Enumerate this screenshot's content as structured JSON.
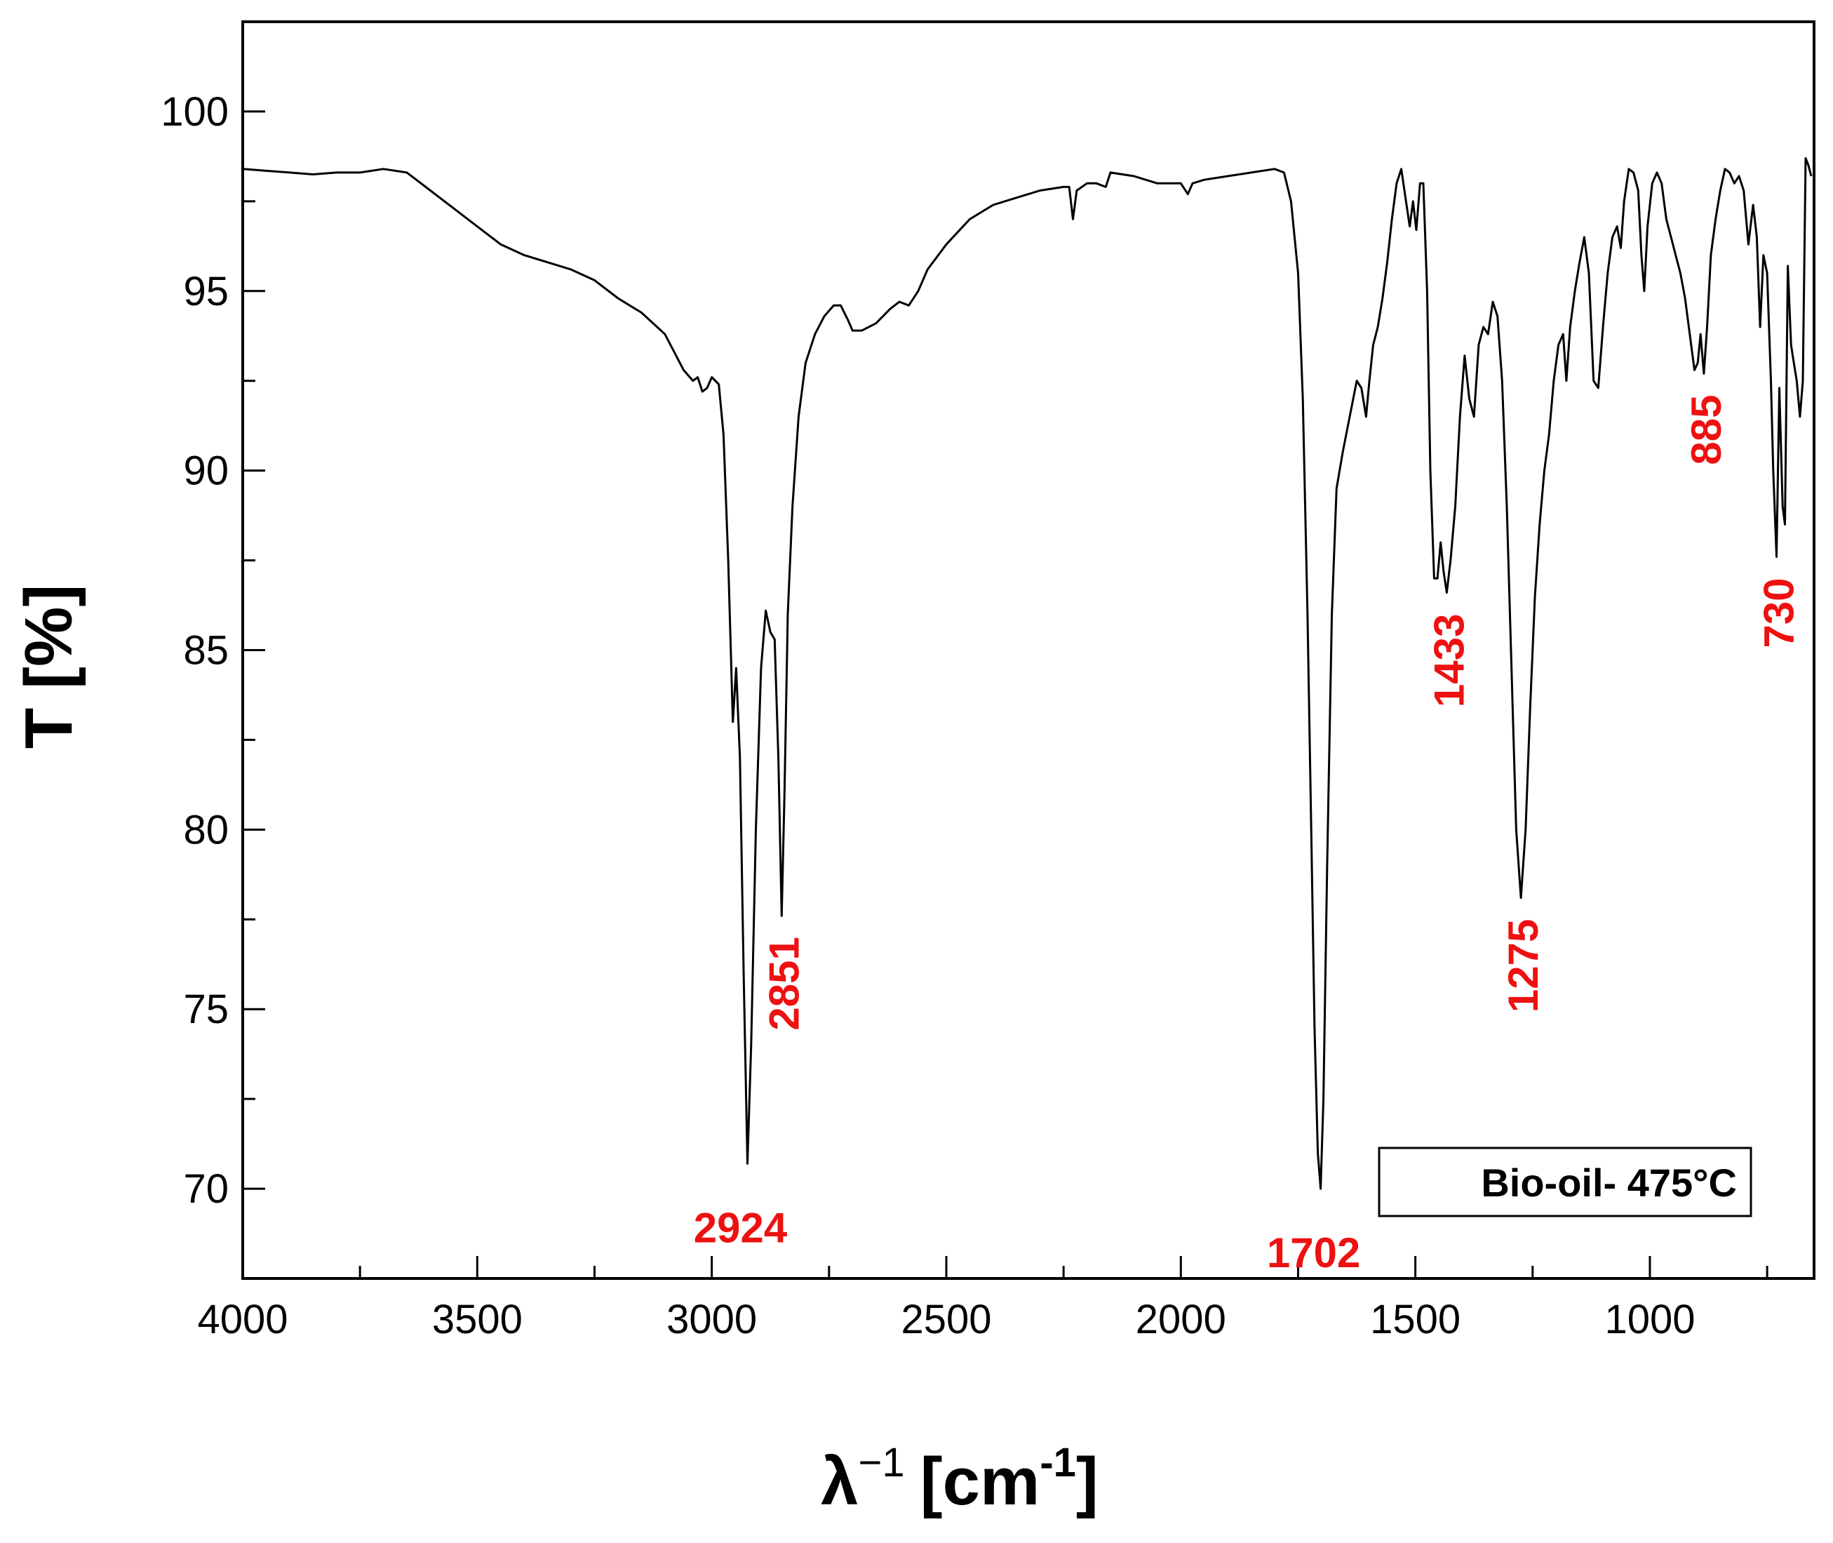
{
  "chart_data": {
    "type": "line",
    "title": "",
    "xlabel": "λ⁻¹ [cm⁻¹]",
    "xlabel_parts": {
      "base": "λ",
      "base_sup": "−1",
      "unit_open": "[cm",
      "unit_sup": "-1",
      "unit_close": "]"
    },
    "ylabel": "T [%]",
    "xlim": [
      4000,
      650
    ],
    "ylim": [
      67.5,
      102.5
    ],
    "x_reversed": true,
    "grid": false,
    "x_ticks": [
      4000,
      3500,
      3000,
      2500,
      2000,
      1500,
      1000
    ],
    "x_tick_labels": [
      "4000",
      "3500",
      "3000",
      "2500",
      "2000",
      "1500",
      "1000"
    ],
    "y_ticks": [
      70,
      75,
      80,
      85,
      90,
      95,
      100
    ],
    "y_tick_labels": [
      "70",
      "75",
      "80",
      "85",
      "90",
      "95",
      "100"
    ],
    "legend": {
      "text": "Bio-oil- 475°C",
      "position": "bottom-right"
    },
    "line_color": "#000000",
    "annotation_color": "#ee1111",
    "annotations": [
      {
        "text": "2924",
        "x": 2924,
        "y": 70.7,
        "orientation": "horizontal"
      },
      {
        "text": "2851",
        "x": 2851,
        "y": 77.6,
        "orientation": "vertical"
      },
      {
        "text": "1702",
        "x": 1702,
        "y": 70.0,
        "orientation": "horizontal"
      },
      {
        "text": "1433",
        "x": 1433,
        "y": 86.6,
        "orientation": "vertical"
      },
      {
        "text": "1275",
        "x": 1275,
        "y": 78.1,
        "orientation": "vertical"
      },
      {
        "text": "885",
        "x": 885,
        "y": 92.7,
        "orientation": "vertical"
      },
      {
        "text": "730",
        "x": 730,
        "y": 87.6,
        "orientation": "vertical"
      }
    ],
    "series": [
      {
        "values": [
          [
            4000,
            98.4
          ],
          [
            3950,
            98.35
          ],
          [
            3900,
            98.3
          ],
          [
            3850,
            98.25
          ],
          [
            3800,
            98.3
          ],
          [
            3750,
            98.3
          ],
          [
            3700,
            98.4
          ],
          [
            3650,
            98.3
          ],
          [
            3600,
            97.8
          ],
          [
            3550,
            97.3
          ],
          [
            3500,
            96.8
          ],
          [
            3450,
            96.3
          ],
          [
            3400,
            96.0
          ],
          [
            3350,
            95.8
          ],
          [
            3300,
            95.6
          ],
          [
            3250,
            95.3
          ],
          [
            3200,
            94.8
          ],
          [
            3150,
            94.4
          ],
          [
            3100,
            93.8
          ],
          [
            3080,
            93.3
          ],
          [
            3060,
            92.8
          ],
          [
            3040,
            92.5
          ],
          [
            3030,
            92.6
          ],
          [
            3020,
            92.2
          ],
          [
            3010,
            92.3
          ],
          [
            3000,
            92.6
          ],
          [
            2985,
            92.4
          ],
          [
            2975,
            91.0
          ],
          [
            2965,
            87.5
          ],
          [
            2955,
            83.0
          ],
          [
            2948,
            84.5
          ],
          [
            2940,
            82.0
          ],
          [
            2932,
            76.0
          ],
          [
            2924,
            70.7
          ],
          [
            2916,
            74.0
          ],
          [
            2906,
            80.0
          ],
          [
            2895,
            84.5
          ],
          [
            2885,
            86.1
          ],
          [
            2875,
            85.5
          ],
          [
            2866,
            85.3
          ],
          [
            2858,
            82.0
          ],
          [
            2851,
            77.6
          ],
          [
            2845,
            81.0
          ],
          [
            2838,
            86.0
          ],
          [
            2828,
            89.0
          ],
          [
            2815,
            91.5
          ],
          [
            2800,
            93.0
          ],
          [
            2780,
            93.8
          ],
          [
            2760,
            94.3
          ],
          [
            2740,
            94.6
          ],
          [
            2725,
            94.6
          ],
          [
            2710,
            94.2
          ],
          [
            2700,
            93.9
          ],
          [
            2680,
            93.9
          ],
          [
            2650,
            94.1
          ],
          [
            2620,
            94.5
          ],
          [
            2600,
            94.7
          ],
          [
            2580,
            94.6
          ],
          [
            2560,
            95.0
          ],
          [
            2540,
            95.6
          ],
          [
            2500,
            96.3
          ],
          [
            2450,
            97.0
          ],
          [
            2400,
            97.4
          ],
          [
            2350,
            97.6
          ],
          [
            2300,
            97.8
          ],
          [
            2250,
            97.9
          ],
          [
            2238,
            97.9
          ],
          [
            2230,
            97.0
          ],
          [
            2222,
            97.8
          ],
          [
            2200,
            98.0
          ],
          [
            2180,
            98.0
          ],
          [
            2160,
            97.9
          ],
          [
            2150,
            98.3
          ],
          [
            2100,
            98.2
          ],
          [
            2050,
            98.0
          ],
          [
            2000,
            98.0
          ],
          [
            1985,
            97.7
          ],
          [
            1975,
            98.0
          ],
          [
            1950,
            98.1
          ],
          [
            1900,
            98.2
          ],
          [
            1850,
            98.3
          ],
          [
            1800,
            98.4
          ],
          [
            1780,
            98.3
          ],
          [
            1765,
            97.5
          ],
          [
            1750,
            95.5
          ],
          [
            1740,
            92.0
          ],
          [
            1730,
            86.0
          ],
          [
            1722,
            80.0
          ],
          [
            1715,
            74.5
          ],
          [
            1708,
            71.0
          ],
          [
            1702,
            70.0
          ],
          [
            1696,
            72.5
          ],
          [
            1688,
            79.0
          ],
          [
            1678,
            86.0
          ],
          [
            1668,
            89.5
          ],
          [
            1655,
            90.5
          ],
          [
            1640,
            91.5
          ],
          [
            1625,
            92.5
          ],
          [
            1615,
            92.3
          ],
          [
            1605,
            91.5
          ],
          [
            1598,
            92.5
          ],
          [
            1590,
            93.5
          ],
          [
            1580,
            94.0
          ],
          [
            1570,
            94.8
          ],
          [
            1560,
            95.8
          ],
          [
            1550,
            97.0
          ],
          [
            1540,
            98.0
          ],
          [
            1530,
            98.4
          ],
          [
            1520,
            97.5
          ],
          [
            1512,
            96.8
          ],
          [
            1505,
            97.5
          ],
          [
            1498,
            96.7
          ],
          [
            1490,
            98.0
          ],
          [
            1483,
            98.0
          ],
          [
            1475,
            95.0
          ],
          [
            1468,
            90.0
          ],
          [
            1460,
            87.0
          ],
          [
            1453,
            87.0
          ],
          [
            1446,
            88.0
          ],
          [
            1440,
            87.2
          ],
          [
            1433,
            86.6
          ],
          [
            1425,
            87.5
          ],
          [
            1415,
            89.0
          ],
          [
            1405,
            91.5
          ],
          [
            1395,
            93.2
          ],
          [
            1385,
            92.0
          ],
          [
            1375,
            91.5
          ],
          [
            1365,
            93.5
          ],
          [
            1355,
            94.0
          ],
          [
            1345,
            93.8
          ],
          [
            1335,
            94.7
          ],
          [
            1325,
            94.3
          ],
          [
            1315,
            92.5
          ],
          [
            1305,
            89.0
          ],
          [
            1295,
            84.5
          ],
          [
            1285,
            80.0
          ],
          [
            1275,
            78.1
          ],
          [
            1265,
            80.0
          ],
          [
            1255,
            83.5
          ],
          [
            1245,
            86.5
          ],
          [
            1235,
            88.5
          ],
          [
            1225,
            90.0
          ],
          [
            1215,
            91.0
          ],
          [
            1205,
            92.5
          ],
          [
            1195,
            93.5
          ],
          [
            1185,
            93.8
          ],
          [
            1178,
            92.5
          ],
          [
            1170,
            94.0
          ],
          [
            1160,
            95.0
          ],
          [
            1150,
            95.8
          ],
          [
            1140,
            96.5
          ],
          [
            1130,
            95.5
          ],
          [
            1120,
            92.5
          ],
          [
            1110,
            92.3
          ],
          [
            1100,
            94.0
          ],
          [
            1090,
            95.5
          ],
          [
            1080,
            96.5
          ],
          [
            1070,
            96.8
          ],
          [
            1062,
            96.2
          ],
          [
            1055,
            97.5
          ],
          [
            1045,
            98.4
          ],
          [
            1035,
            98.3
          ],
          [
            1025,
            97.8
          ],
          [
            1018,
            96.0
          ],
          [
            1012,
            95.0
          ],
          [
            1005,
            96.8
          ],
          [
            995,
            98.0
          ],
          [
            985,
            98.3
          ],
          [
            975,
            98.0
          ],
          [
            965,
            97.0
          ],
          [
            955,
            96.5
          ],
          [
            945,
            96.0
          ],
          [
            935,
            95.5
          ],
          [
            925,
            94.8
          ],
          [
            915,
            93.8
          ],
          [
            905,
            92.8
          ],
          [
            898,
            93.0
          ],
          [
            892,
            93.8
          ],
          [
            885,
            92.7
          ],
          [
            878,
            94.0
          ],
          [
            870,
            96.0
          ],
          [
            860,
            97.0
          ],
          [
            850,
            97.8
          ],
          [
            840,
            98.4
          ],
          [
            830,
            98.3
          ],
          [
            820,
            98.0
          ],
          [
            810,
            98.2
          ],
          [
            800,
            97.8
          ],
          [
            790,
            96.3
          ],
          [
            780,
            97.4
          ],
          [
            772,
            96.5
          ],
          [
            765,
            94.0
          ],
          [
            758,
            96.0
          ],
          [
            750,
            95.5
          ],
          [
            742,
            92.5
          ],
          [
            737,
            90.0
          ],
          [
            730,
            87.6
          ],
          [
            724,
            92.3
          ],
          [
            717,
            89.0
          ],
          [
            712,
            88.5
          ],
          [
            706,
            95.7
          ],
          [
            699,
            93.5
          ],
          [
            693,
            93.0
          ],
          [
            687,
            92.5
          ],
          [
            680,
            91.5
          ],
          [
            674,
            92.5
          ],
          [
            668,
            98.7
          ],
          [
            662,
            98.5
          ],
          [
            656,
            98.2
          ]
        ]
      }
    ]
  }
}
